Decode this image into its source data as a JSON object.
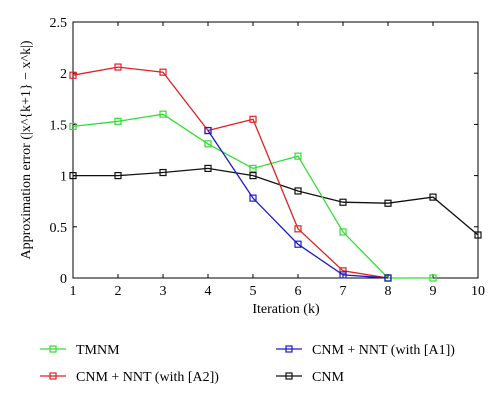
{
  "chart_data": {
    "type": "line",
    "title": "",
    "xlabel": "Iteration (k)",
    "ylabel": "Approximation error (|x^{k+1} − x^k|)",
    "x": [
      1,
      2,
      3,
      4,
      5,
      6,
      7,
      8,
      9,
      10
    ],
    "xlim": [
      1,
      10
    ],
    "ylim": [
      0,
      2.5
    ],
    "xticks": [
      "1",
      "2",
      "3",
      "4",
      "5",
      "6",
      "7",
      "8",
      "9",
      "10"
    ],
    "yticks": [
      "0",
      "0.5",
      "1",
      "1.5",
      "2",
      "2.5"
    ],
    "grid": false,
    "legend_position": "bottom",
    "series": [
      {
        "name": "TMNM",
        "color": "#33dd33",
        "marker": "square",
        "x": [
          1,
          2,
          3,
          4,
          5,
          6,
          7,
          8,
          9
        ],
        "values": [
          1.48,
          1.53,
          1.6,
          1.31,
          1.07,
          1.19,
          0.45,
          0.0,
          0.0
        ]
      },
      {
        "name": "CNM + NNT (with [A2])",
        "color": "#dd2222",
        "marker": "square",
        "x": [
          1,
          2,
          3,
          4,
          5,
          6,
          7,
          8
        ],
        "values": [
          1.98,
          2.06,
          2.01,
          1.44,
          1.55,
          0.48,
          0.07,
          0.0
        ]
      },
      {
        "name": "CNM + NNT (with [A1])",
        "color": "#1a1acc",
        "marker": "square",
        "x": [
          4,
          5,
          6,
          7,
          8
        ],
        "values": [
          1.44,
          0.78,
          0.33,
          0.03,
          0.0
        ]
      },
      {
        "name": "CNM",
        "color": "#111111",
        "marker": "square",
        "x": [
          1,
          2,
          3,
          4,
          5,
          6,
          7,
          8,
          9,
          10
        ],
        "values": [
          1.0,
          1.0,
          1.03,
          1.07,
          1.0,
          0.85,
          0.74,
          0.73,
          0.79,
          0.42
        ]
      }
    ]
  }
}
